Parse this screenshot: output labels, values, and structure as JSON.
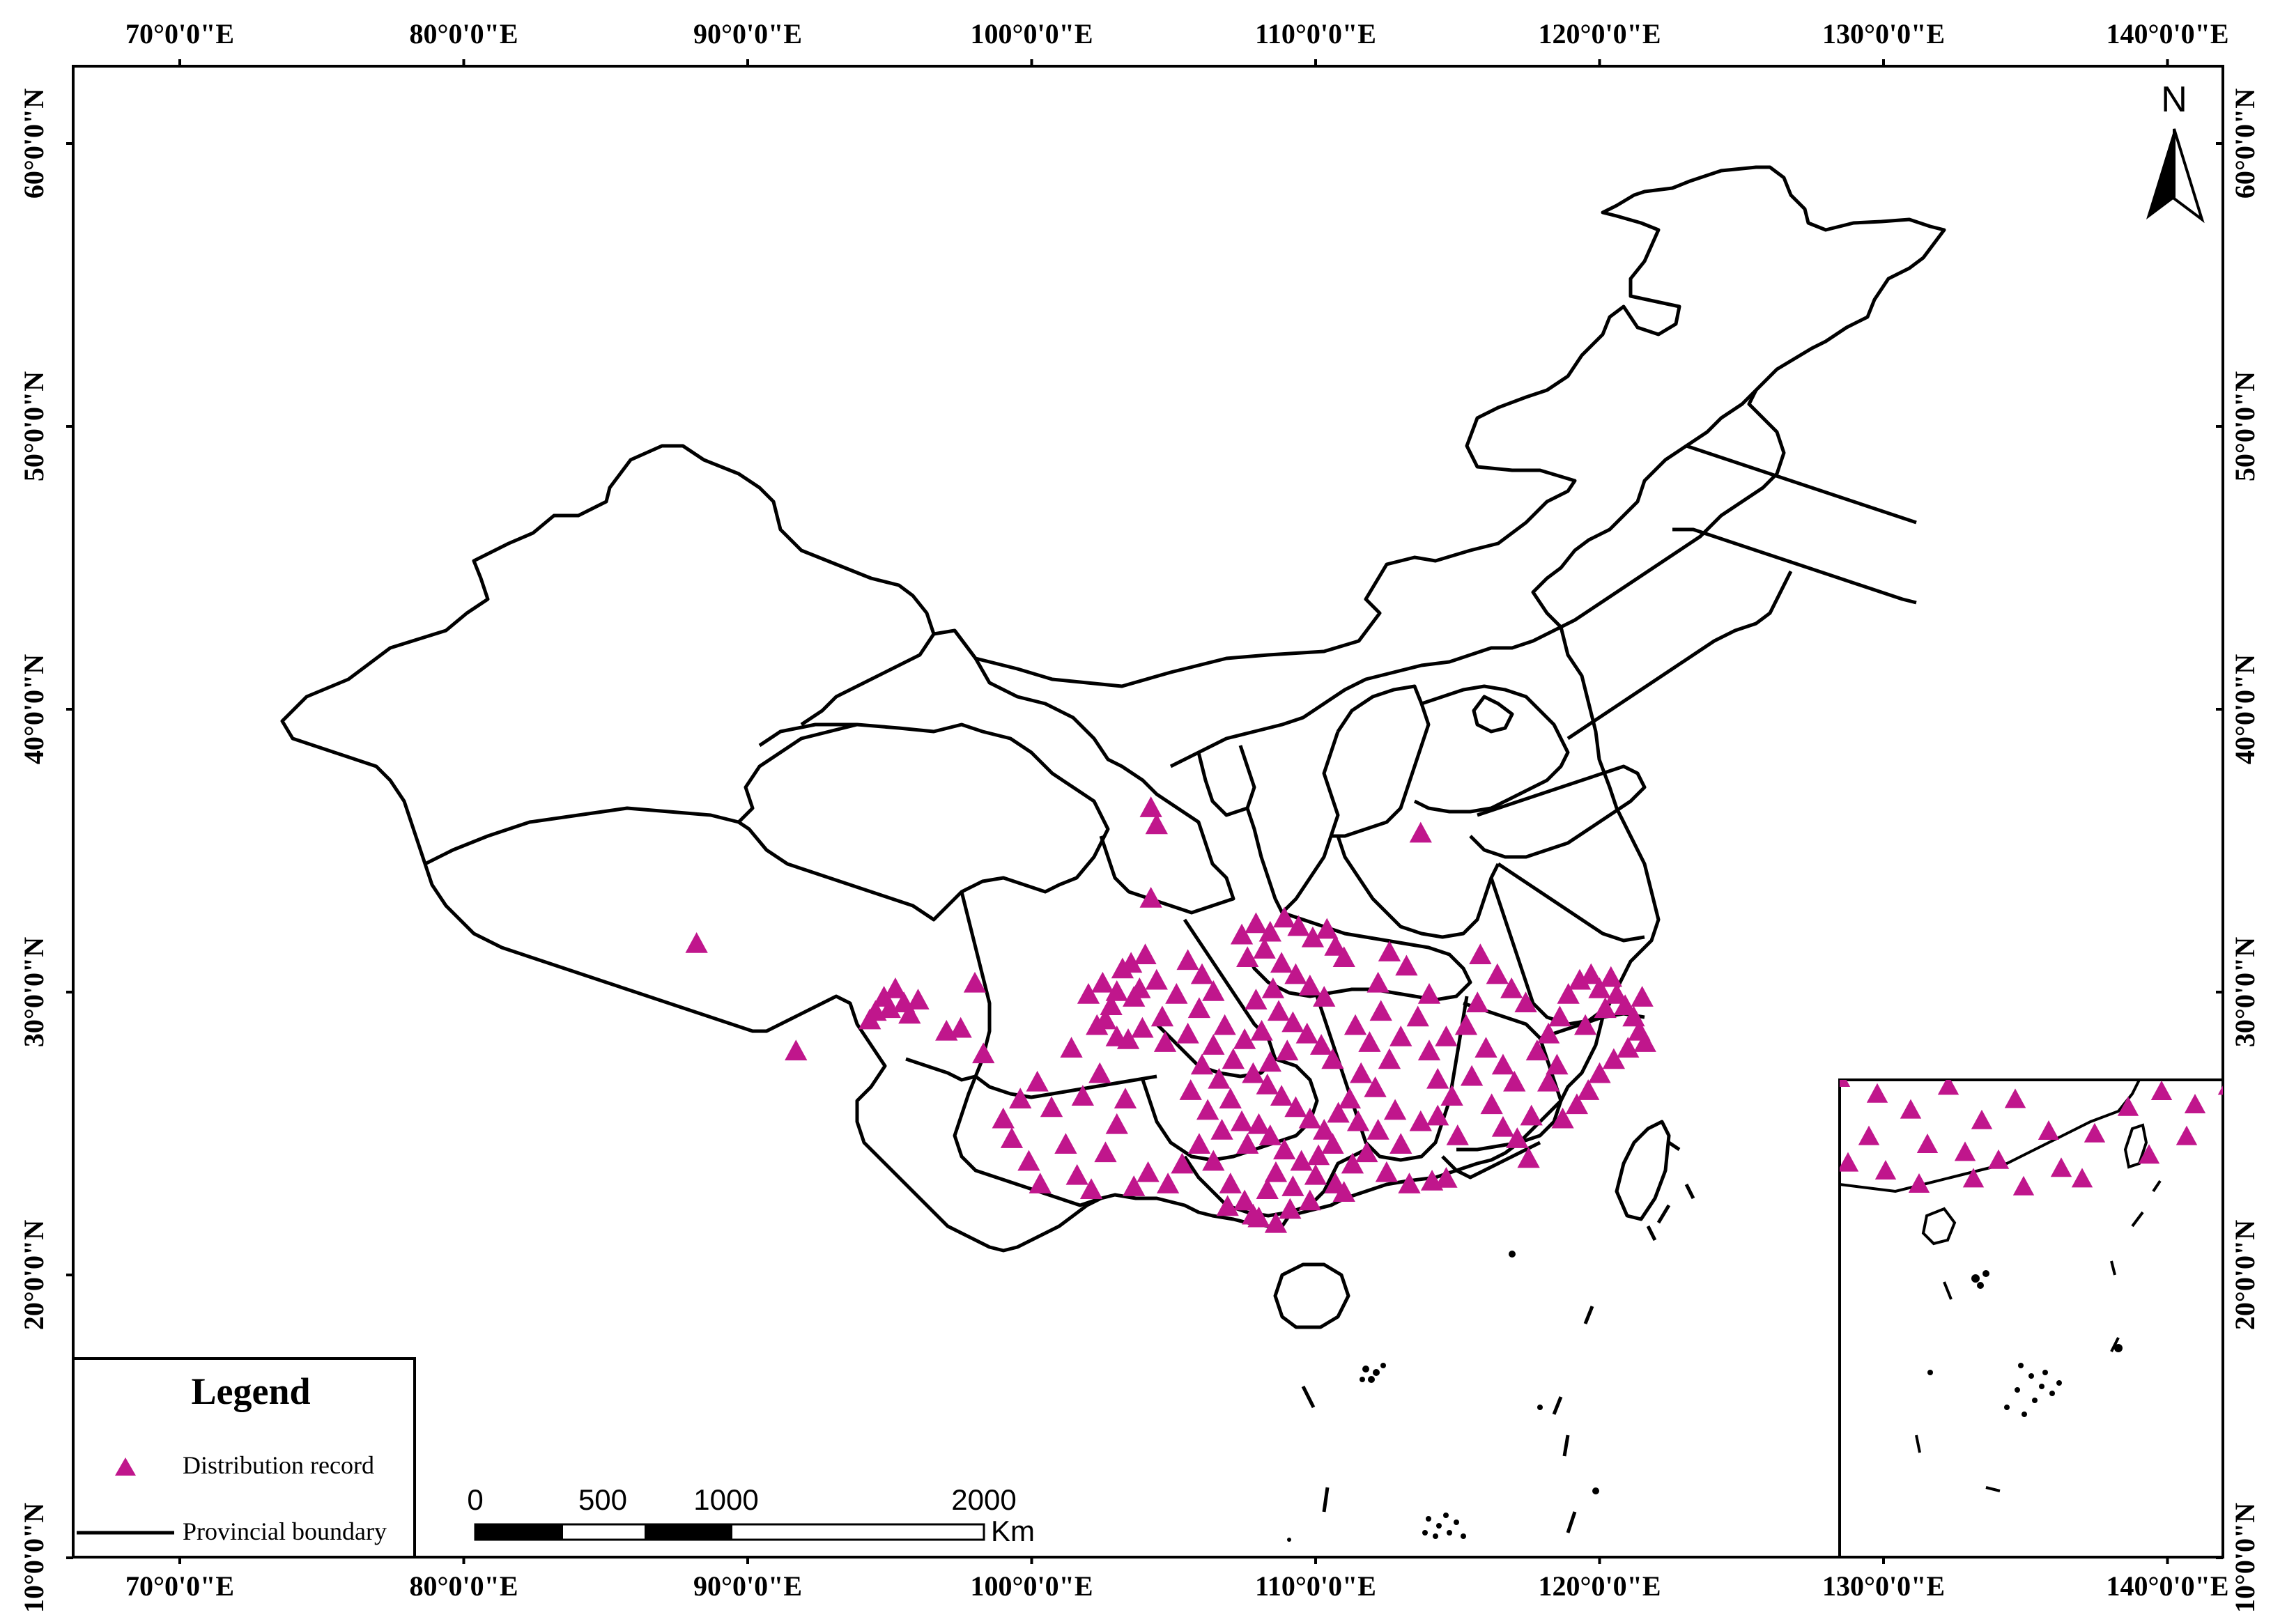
{
  "map": {
    "colors": {
      "record": "#c0168c",
      "boundary": "#000000",
      "frame": "#000000",
      "background": "#ffffff"
    },
    "lon_ticks": [
      "70°0'0\"E",
      "80°0'0\"E",
      "90°0'0\"E",
      "100°0'0\"E",
      "110°0'0\"E",
      "120°0'0\"E",
      "130°0'0\"E",
      "140°0'0\"E"
    ],
    "lat_ticks": [
      "10°0'0\"N",
      "20°0'0\"N",
      "30°0'0\"N",
      "40°0'0\"N",
      "50°0'0\"N",
      "60°0'0\"N"
    ],
    "north_label": "N",
    "legend": {
      "title": "Legend",
      "record_label": "Distribution record",
      "boundary_label": "Provincial boundary"
    },
    "scale": {
      "labels": [
        "0",
        "500",
        "1000",
        "2000"
      ],
      "unit": "Km"
    },
    "records": [
      [
        88.2,
        31.7
      ],
      [
        91.7,
        27.9
      ],
      [
        94.5,
        29.3
      ],
      [
        94.8,
        29.8
      ],
      [
        95.2,
        30.1
      ],
      [
        95.5,
        29.6
      ],
      [
        95.0,
        29.4
      ],
      [
        96.0,
        29.7
      ],
      [
        94.3,
        29.0
      ],
      [
        95.7,
        29.2
      ],
      [
        97.0,
        28.6
      ],
      [
        97.5,
        28.7
      ],
      [
        98.0,
        30.3
      ],
      [
        98.3,
        27.8
      ],
      [
        99.0,
        25.5
      ],
      [
        99.3,
        24.8
      ],
      [
        99.9,
        24.0
      ],
      [
        100.3,
        23.2
      ],
      [
        100.7,
        25.9
      ],
      [
        101.2,
        24.6
      ],
      [
        101.6,
        23.5
      ],
      [
        100.2,
        26.8
      ],
      [
        101.8,
        26.3
      ],
      [
        99.6,
        26.2
      ],
      [
        102.1,
        23.0
      ],
      [
        102.6,
        24.3
      ],
      [
        103.0,
        25.3
      ],
      [
        103.6,
        23.1
      ],
      [
        104.1,
        23.6
      ],
      [
        104.8,
        23.2
      ],
      [
        105.3,
        23.9
      ],
      [
        103.3,
        26.2
      ],
      [
        102.4,
        27.1
      ],
      [
        101.4,
        28.0
      ],
      [
        102.0,
        29.9
      ],
      [
        102.5,
        30.3
      ],
      [
        102.8,
        29.5
      ],
      [
        103.2,
        30.8
      ],
      [
        103.6,
        29.8
      ],
      [
        103.0,
        30.0
      ],
      [
        103.9,
        28.7
      ],
      [
        104.4,
        30.4
      ],
      [
        104.0,
        31.3
      ],
      [
        103.5,
        31.0
      ],
      [
        102.3,
        28.8
      ],
      [
        103.0,
        28.4
      ],
      [
        104.6,
        29.1
      ],
      [
        105.1,
        29.9
      ],
      [
        104.7,
        28.2
      ],
      [
        103.4,
        28.3
      ],
      [
        102.6,
        29.0
      ],
      [
        103.8,
        30.1
      ],
      [
        104.2,
        36.5
      ],
      [
        104.4,
        35.9
      ],
      [
        104.2,
        33.3
      ],
      [
        105.5,
        31.1
      ],
      [
        106.0,
        30.6
      ],
      [
        106.4,
        30.0
      ],
      [
        105.9,
        29.4
      ],
      [
        106.8,
        28.8
      ],
      [
        105.5,
        28.5
      ],
      [
        106.4,
        28.1
      ],
      [
        107.1,
        27.6
      ],
      [
        106.0,
        27.4
      ],
      [
        106.6,
        26.9
      ],
      [
        105.6,
        26.5
      ],
      [
        106.2,
        25.8
      ],
      [
        107.0,
        26.2
      ],
      [
        107.4,
        25.4
      ],
      [
        106.7,
        25.1
      ],
      [
        105.9,
        24.6
      ],
      [
        106.4,
        24.0
      ],
      [
        107.0,
        23.2
      ],
      [
        107.5,
        22.6
      ],
      [
        108.0,
        22.0
      ],
      [
        108.6,
        21.8
      ],
      [
        107.8,
        22.1
      ],
      [
        106.9,
        22.4
      ],
      [
        107.4,
        32.0
      ],
      [
        107.9,
        32.4
      ],
      [
        108.4,
        32.1
      ],
      [
        108.9,
        32.6
      ],
      [
        109.4,
        32.3
      ],
      [
        109.9,
        31.9
      ],
      [
        110.4,
        32.2
      ],
      [
        110.7,
        31.6
      ],
      [
        111.0,
        31.2
      ],
      [
        108.2,
        31.5
      ],
      [
        107.6,
        31.2
      ],
      [
        108.8,
        31.0
      ],
      [
        109.3,
        30.6
      ],
      [
        109.8,
        30.2
      ],
      [
        110.3,
        29.8
      ],
      [
        108.5,
        30.1
      ],
      [
        107.9,
        29.7
      ],
      [
        108.7,
        29.3
      ],
      [
        109.2,
        28.9
      ],
      [
        109.7,
        28.5
      ],
      [
        110.2,
        28.1
      ],
      [
        110.6,
        27.6
      ],
      [
        109.0,
        27.9
      ],
      [
        108.4,
        27.5
      ],
      [
        107.8,
        27.1
      ],
      [
        108.1,
        28.6
      ],
      [
        107.5,
        28.3
      ],
      [
        108.3,
        26.7
      ],
      [
        108.8,
        26.3
      ],
      [
        109.3,
        25.9
      ],
      [
        109.8,
        25.5
      ],
      [
        110.3,
        25.1
      ],
      [
        110.8,
        25.7
      ],
      [
        111.2,
        26.2
      ],
      [
        111.5,
        25.4
      ],
      [
        110.6,
        24.6
      ],
      [
        110.1,
        24.2
      ],
      [
        109.5,
        24.0
      ],
      [
        108.9,
        24.4
      ],
      [
        108.4,
        24.9
      ],
      [
        108.0,
        25.3
      ],
      [
        107.6,
        24.6
      ],
      [
        108.6,
        23.6
      ],
      [
        109.2,
        23.1
      ],
      [
        110.0,
        23.5
      ],
      [
        110.7,
        23.2
      ],
      [
        111.3,
        23.9
      ],
      [
        109.8,
        22.6
      ],
      [
        109.1,
        22.3
      ],
      [
        108.3,
        23.0
      ],
      [
        111.0,
        22.9
      ],
      [
        111.6,
        27.1
      ],
      [
        112.1,
        26.6
      ],
      [
        112.6,
        27.6
      ],
      [
        111.9,
        28.2
      ],
      [
        111.4,
        28.8
      ],
      [
        112.3,
        29.3
      ],
      [
        113.0,
        28.4
      ],
      [
        113.6,
        29.1
      ],
      [
        112.8,
        25.8
      ],
      [
        112.2,
        25.1
      ],
      [
        111.8,
        24.3
      ],
      [
        112.5,
        23.6
      ],
      [
        113.3,
        23.2
      ],
      [
        113.0,
        24.6
      ],
      [
        113.7,
        25.4
      ],
      [
        114.1,
        23.3
      ],
      [
        114.6,
        23.4
      ],
      [
        113.7,
        35.6
      ],
      [
        112.2,
        30.3
      ],
      [
        113.2,
        30.9
      ],
      [
        112.6,
        31.4
      ],
      [
        114.0,
        27.9
      ],
      [
        114.3,
        26.9
      ],
      [
        114.8,
        26.3
      ],
      [
        114.3,
        25.6
      ],
      [
        115.0,
        24.9
      ],
      [
        114.6,
        28.4
      ],
      [
        115.3,
        28.8
      ],
      [
        115.7,
        29.6
      ],
      [
        116.0,
        28.0
      ],
      [
        116.6,
        27.4
      ],
      [
        117.0,
        26.8
      ],
      [
        116.2,
        26.0
      ],
      [
        115.5,
        27.0
      ],
      [
        114.0,
        29.9
      ],
      [
        116.4,
        30.6
      ],
      [
        115.8,
        31.3
      ],
      [
        116.9,
        30.1
      ],
      [
        117.4,
        29.6
      ],
      [
        116.6,
        25.2
      ],
      [
        117.6,
        25.6
      ],
      [
        117.1,
        24.8
      ],
      [
        117.8,
        27.9
      ],
      [
        118.2,
        28.5
      ],
      [
        118.6,
        29.1
      ],
      [
        118.9,
        29.9
      ],
      [
        119.3,
        30.4
      ],
      [
        119.7,
        30.6
      ],
      [
        120.0,
        30.1
      ],
      [
        120.4,
        30.5
      ],
      [
        120.6,
        29.9
      ],
      [
        120.9,
        29.5
      ],
      [
        121.2,
        29.1
      ],
      [
        121.4,
        28.6
      ],
      [
        121.0,
        28.0
      ],
      [
        120.5,
        27.6
      ],
      [
        120.0,
        27.1
      ],
      [
        119.6,
        26.5
      ],
      [
        119.2,
        26.0
      ],
      [
        118.7,
        25.5
      ],
      [
        118.2,
        26.8
      ],
      [
        119.5,
        28.8
      ],
      [
        120.2,
        29.4
      ],
      [
        118.5,
        27.4
      ],
      [
        117.5,
        24.1
      ],
      [
        121.5,
        29.8
      ],
      [
        121.6,
        28.2
      ]
    ],
    "inset_records": [
      [
        128.5,
        27.0
      ],
      [
        129.4,
        26.4
      ],
      [
        130.2,
        25.8
      ],
      [
        131.1,
        26.7
      ],
      [
        131.9,
        25.4
      ],
      [
        132.7,
        26.2
      ],
      [
        133.5,
        25.0
      ],
      [
        130.6,
        24.5
      ],
      [
        129.2,
        24.8
      ],
      [
        131.5,
        24.2
      ],
      [
        132.3,
        23.9
      ],
      [
        133.8,
        23.6
      ],
      [
        134.6,
        24.9
      ],
      [
        135.4,
        25.9
      ],
      [
        136.2,
        26.5
      ],
      [
        137.0,
        26.0
      ],
      [
        137.8,
        26.7
      ],
      [
        135.9,
        24.1
      ],
      [
        134.3,
        23.2
      ],
      [
        130.4,
        23.0
      ],
      [
        129.6,
        23.5
      ],
      [
        128.7,
        23.8
      ],
      [
        131.7,
        23.2
      ],
      [
        132.9,
        22.9
      ],
      [
        136.8,
        24.8
      ]
    ]
  }
}
